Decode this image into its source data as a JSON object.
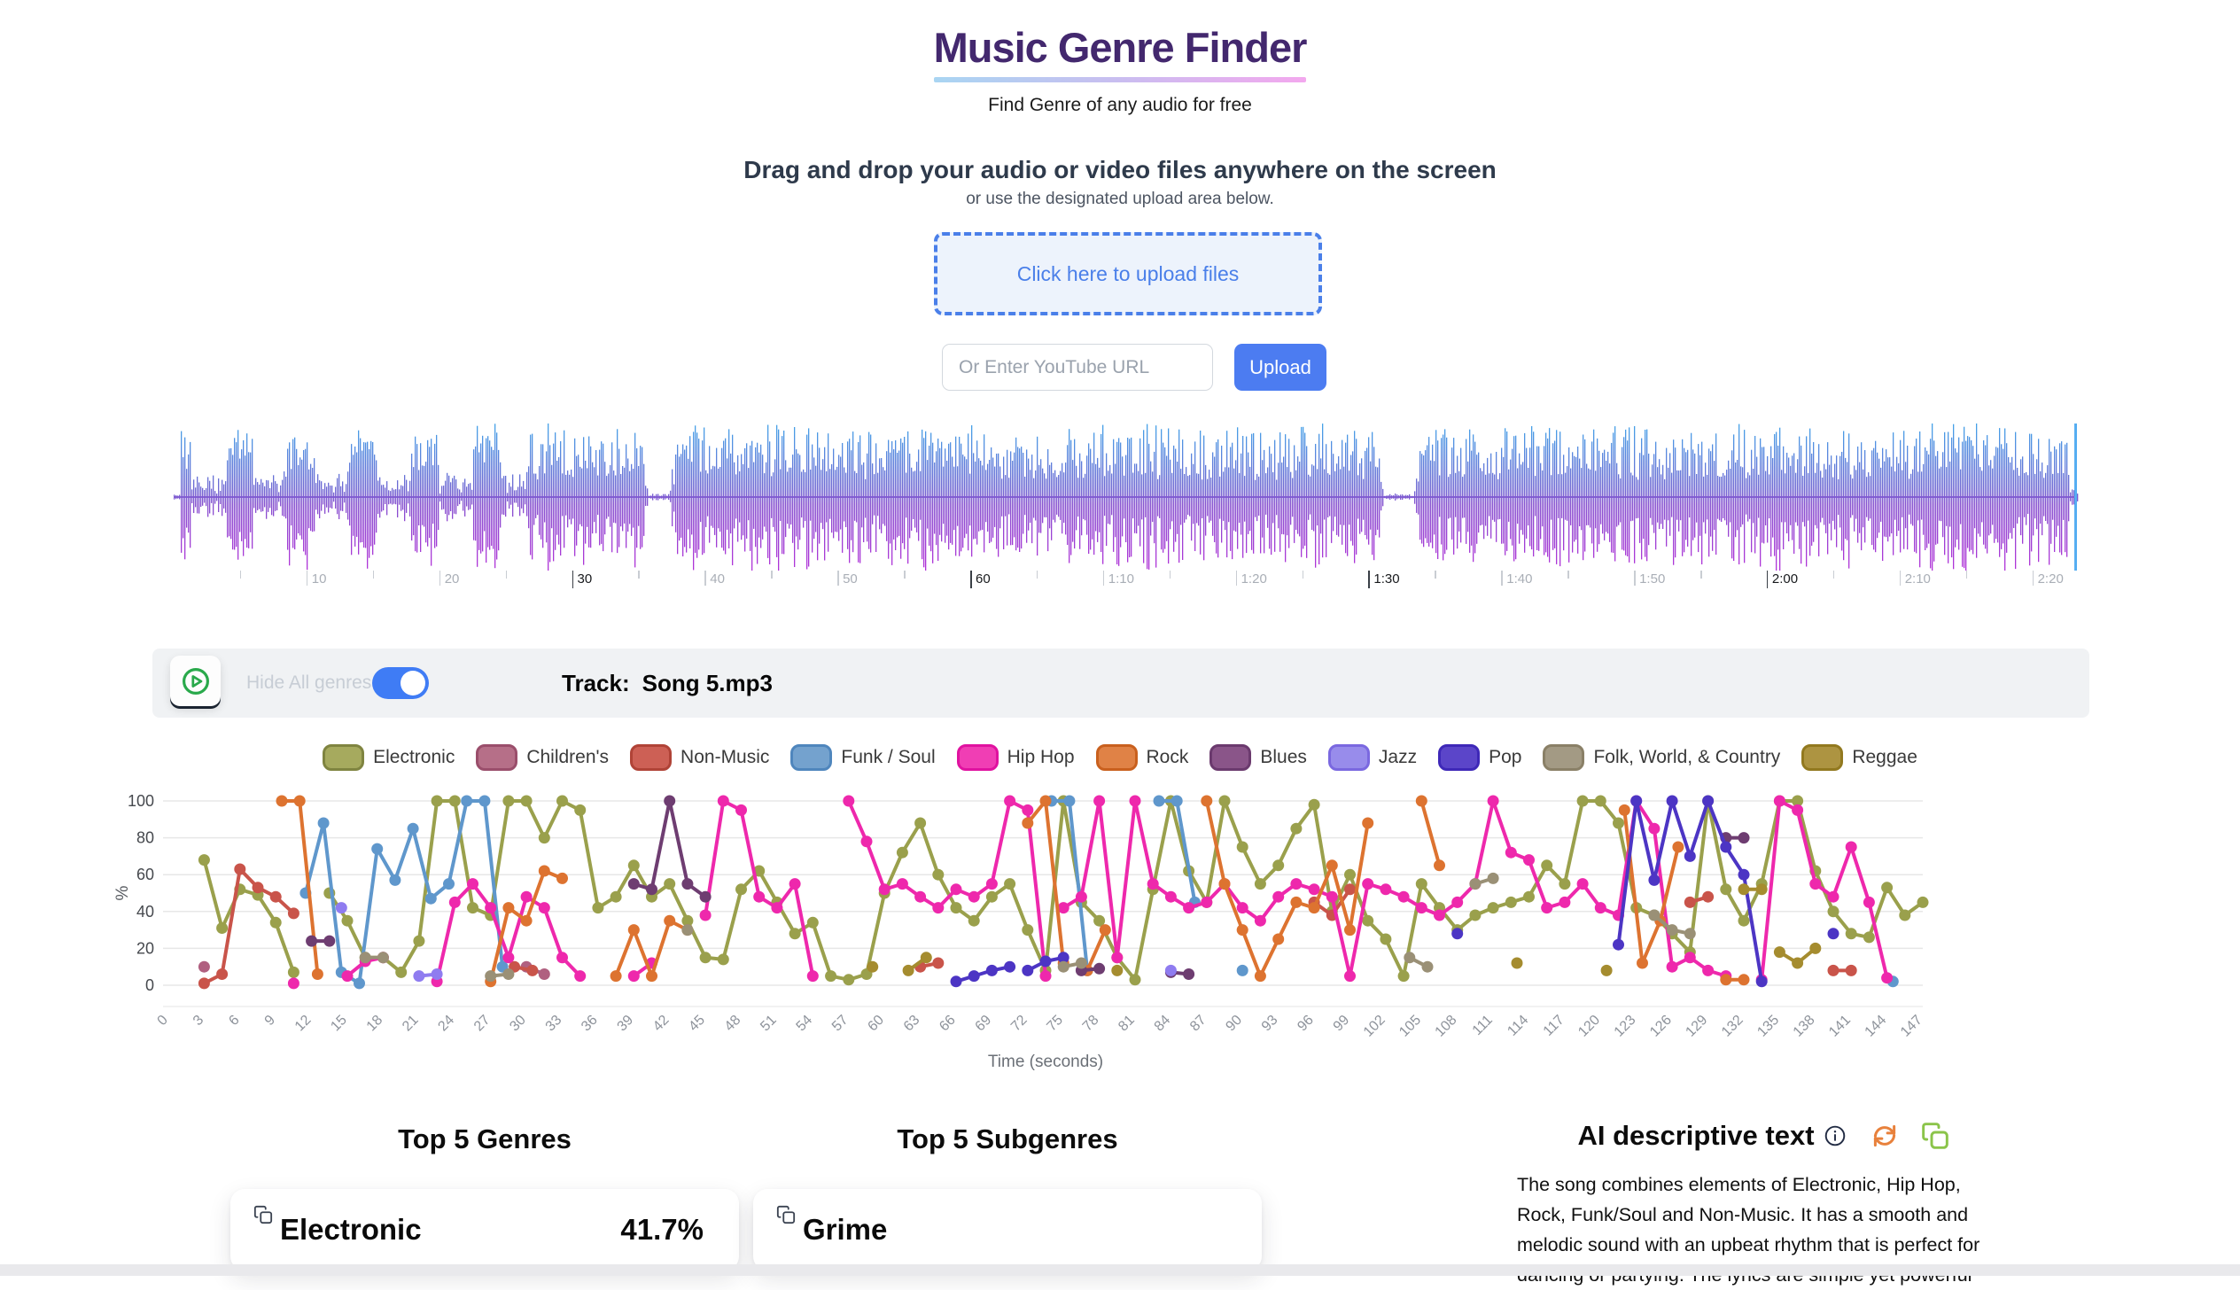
{
  "header": {
    "title": "Music Genre Finder",
    "subtitle": "Find Genre of any audio for free",
    "underline_gradient": [
      "#a9d5f2",
      "#f3a8ee"
    ]
  },
  "upload": {
    "heading": "Drag and drop your audio or video files anywhere on the screen",
    "subheading": "or use the designated upload area below.",
    "box_label": "Click here to upload files",
    "url_placeholder": "Or Enter YouTube URL",
    "button_label": "Upload",
    "accent_color": "#4a7fe9"
  },
  "waveform": {
    "duration_seconds": 143.5,
    "gradient": [
      "#44a3e8",
      "#6f66d2",
      "#8550cf",
      "#b232d8"
    ],
    "cursor_color": "#56aef2",
    "silence_gaps_seconds": [
      [
        35.7,
        37.3
      ],
      [
        91.1,
        93.4
      ]
    ],
    "ticks": [
      {
        "t": 10,
        "label": "10"
      },
      {
        "t": 20,
        "label": "20"
      },
      {
        "t": 30,
        "label": "30",
        "strong": true
      },
      {
        "t": 40,
        "label": "40"
      },
      {
        "t": 50,
        "label": "50"
      },
      {
        "t": 60,
        "label": "60",
        "strong": true
      },
      {
        "t": 70,
        "label": "1:10"
      },
      {
        "t": 80,
        "label": "1:20"
      },
      {
        "t": 90,
        "label": "1:30",
        "strong": true
      },
      {
        "t": 100,
        "label": "1:40"
      },
      {
        "t": 110,
        "label": "1:50"
      },
      {
        "t": 120,
        "label": "2:00",
        "strong": true
      },
      {
        "t": 130,
        "label": "2:10"
      },
      {
        "t": 140,
        "label": "2:20"
      }
    ]
  },
  "toolbar": {
    "hide_label": "Hide All genres",
    "toggle_on": true,
    "toggle_color": "#3f7cf5",
    "track_label": "Track:",
    "track_name": "Song 5.mp3",
    "play_icon_color": "#29a94b"
  },
  "legend": {
    "items": [
      {
        "label": "Electronic",
        "fill": "#a6aa5e",
        "border": "#7f8440"
      },
      {
        "label": "Children's",
        "fill": "#b66f88",
        "border": "#9a4e6b"
      },
      {
        "label": "Non-Music",
        "fill": "#cd6055",
        "border": "#b04337"
      },
      {
        "label": "Funk / Soul",
        "fill": "#74a2ce",
        "border": "#4f86bd"
      },
      {
        "label": "Hip Hop",
        "fill": "#f03eb4",
        "border": "#e012a0"
      },
      {
        "label": "Rock",
        "fill": "#e08246",
        "border": "#c9601e"
      },
      {
        "label": "Blues",
        "fill": "#8a5589",
        "border": "#6b3a6e"
      },
      {
        "label": "Jazz",
        "fill": "#988ceb",
        "border": "#7a68e0"
      },
      {
        "label": "Pop",
        "fill": "#5b45c9",
        "border": "#3e28b8"
      },
      {
        "label": "Folk, World, & Country",
        "fill": "#a39a84",
        "border": "#8a8067"
      },
      {
        "label": "Reggae",
        "fill": "#ad9441",
        "border": "#92791f"
      }
    ]
  },
  "chart_data": {
    "type": "line",
    "xlabel": "Time (seconds)",
    "ylabel": "%",
    "ylim": [
      0,
      100
    ],
    "y_ticks": [
      0,
      20,
      40,
      60,
      80,
      100
    ],
    "x_ticks": [
      0,
      3,
      6,
      9,
      12,
      15,
      18,
      21,
      24,
      27,
      30,
      33,
      36,
      39,
      42,
      45,
      48,
      51,
      54,
      57,
      60,
      63,
      66,
      69,
      72,
      75,
      78,
      81,
      84,
      87,
      90,
      93,
      96,
      99,
      102,
      105,
      108,
      111,
      114,
      117,
      120,
      123,
      126,
      129,
      132,
      135,
      138,
      141,
      144,
      147
    ],
    "grid": true,
    "legend_position": "top",
    "series": [
      {
        "name": "Electronic",
        "color": "#9aa04c",
        "segments": [
          {
            "t0": 3,
            "dt": 1.5,
            "v": [
              68,
              31,
              52,
              49,
              34,
              7
            ]
          },
          {
            "t0": 13.5,
            "dt": 1.5,
            "v": [
              50,
              35,
              15,
              15,
              7,
              24,
              100,
              100,
              42,
              38,
              100,
              100,
              80,
              100,
              95,
              42,
              48,
              65,
              48,
              55,
              35,
              15,
              14,
              52,
              62,
              45,
              28,
              34,
              5,
              3,
              6,
              50,
              72,
              88,
              60,
              42,
              35,
              48,
              55,
              30,
              8,
              100,
              45,
              35,
              15,
              3,
              52,
              100,
              62,
              45,
              100,
              75,
              55,
              65,
              85,
              98,
              40,
              60,
              35,
              25,
              5,
              55,
              42,
              30,
              38,
              42,
              45,
              48,
              65,
              55,
              100,
              100,
              88,
              42,
              38,
              28,
              18,
              100,
              52,
              35,
              55,
              100,
              100,
              62,
              40,
              28,
              26,
              53,
              38,
              45
            ]
          }
        ]
      },
      {
        "name": "Children's",
        "color": "#b06080",
        "segments": [
          [
            [
              3,
              10
            ]
          ],
          [
            [
              30,
              10
            ],
            [
              31.5,
              6
            ]
          ]
        ]
      },
      {
        "name": "Non-Music",
        "color": "#c9544a",
        "segments": [
          {
            "t0": 3,
            "dt": 1.5,
            "v": [
              1,
              6,
              63,
              53,
              48,
              39
            ]
          },
          [
            [
              29,
              10
            ],
            [
              30.5,
              8
            ]
          ],
          [
            [
              63,
              10
            ],
            [
              64.5,
              12
            ]
          ],
          [
            [
              96,
              45
            ],
            [
              97.5,
              38
            ],
            [
              99,
              52
            ]
          ],
          [
            [
              127.5,
              45
            ],
            [
              129,
              48
            ]
          ],
          [
            [
              139.5,
              8
            ],
            [
              141,
              8
            ]
          ]
        ]
      },
      {
        "name": "Funk / Soul",
        "color": "#5f97cc",
        "segments": [
          {
            "t0": 11.5,
            "dt": 1.5,
            "v": [
              50,
              88,
              7,
              1,
              74,
              57,
              85,
              47,
              55,
              100,
              100,
              10
            ]
          },
          {
            "t0": 74,
            "dt": 1.5,
            "v": [
              100,
              100,
              8
            ]
          },
          {
            "t0": 83,
            "dt": 1.5,
            "v": [
              100,
              100,
              45
            ]
          },
          [
            [
              90,
              8
            ]
          ],
          [
            [
              144.5,
              2
            ]
          ]
        ]
      },
      {
        "name": "Hip Hop",
        "color": "#ee28ac",
        "segments": [
          [
            [
              10.5,
              1
            ]
          ],
          {
            "t0": 15,
            "dt": 1.5,
            "v": [
              5,
              13,
              15
            ]
          },
          {
            "t0": 22.5,
            "dt": 1.5,
            "v": [
              2,
              45,
              55,
              42,
              15,
              48,
              42,
              15,
              5
            ]
          },
          [
            [
              39,
              5
            ],
            [
              40.5,
              12
            ]
          ],
          {
            "t0": 45,
            "dt": 1.5,
            "v": [
              38,
              100,
              95,
              48,
              42,
              55,
              5
            ]
          },
          {
            "t0": 57,
            "dt": 1.5,
            "v": [
              100,
              78,
              52,
              55,
              48,
              42,
              52,
              48,
              55,
              100,
              95,
              5
            ]
          },
          {
            "t0": 75,
            "dt": 1.5,
            "v": [
              42,
              48,
              100,
              15,
              100,
              55,
              48,
              42,
              45,
              55,
              42,
              35,
              48,
              55,
              52,
              48,
              5,
              55,
              52,
              48,
              42,
              38,
              45,
              55,
              100,
              72,
              68,
              42,
              45,
              55,
              42,
              38,
              100,
              85,
              10,
              15,
              8,
              5
            ]
          },
          {
            "t0": 133.5,
            "dt": 1.5,
            "v": [
              3,
              100,
              95,
              55,
              48,
              75,
              45,
              4
            ]
          }
        ]
      },
      {
        "name": "Rock",
        "color": "#dd7330",
        "segments": [
          [
            [
              9.5,
              100
            ],
            [
              11,
              100
            ],
            [
              12.5,
              6
            ]
          ],
          {
            "t0": 27,
            "dt": 1.5,
            "v": [
              2,
              42,
              35,
              62,
              58
            ]
          },
          {
            "t0": 37.5,
            "dt": 1.5,
            "v": [
              5,
              30,
              5,
              35,
              30
            ]
          },
          [
            [
              72,
              88
            ],
            [
              73.5,
              100
            ],
            [
              75,
              12
            ]
          ],
          [
            [
              77,
              8
            ],
            [
              78.5,
              30
            ]
          ],
          {
            "t0": 87,
            "dt": 1.5,
            "v": [
              100,
              55,
              30,
              5,
              25,
              45,
              42,
              65,
              30,
              88
            ]
          },
          [
            [
              105,
              100
            ],
            [
              106.5,
              65
            ]
          ],
          [
            [
              122,
              95
            ],
            [
              123.5,
              12
            ],
            [
              125,
              35
            ],
            [
              126.5,
              75
            ]
          ],
          [
            [
              130.5,
              3
            ],
            [
              132,
              3
            ]
          ]
        ]
      },
      {
        "name": "Blues",
        "color": "#6e3d71",
        "segments": [
          [
            [
              12,
              24
            ],
            [
              13.5,
              24
            ]
          ],
          [
            [
              39,
              55
            ],
            [
              40.5,
              52
            ],
            [
              42,
              100
            ],
            [
              43.5,
              55
            ],
            [
              45,
              48
            ]
          ],
          [
            [
              76.5,
              8
            ],
            [
              78,
              9
            ]
          ],
          [
            [
              84,
              7
            ],
            [
              85.5,
              6
            ]
          ],
          [
            [
              130.5,
              80
            ],
            [
              132,
              80
            ]
          ]
        ]
      },
      {
        "name": "Jazz",
        "color": "#8f7cf0",
        "segments": [
          [
            [
              14.5,
              42
            ]
          ],
          [
            [
              21,
              5
            ],
            [
              22.5,
              6
            ]
          ],
          [
            [
              84,
              8
            ]
          ]
        ]
      },
      {
        "name": "Pop",
        "color": "#4c35c4",
        "segments": [
          [
            [
              66,
              2
            ],
            [
              67.5,
              5
            ],
            [
              69,
              8
            ],
            [
              70.5,
              10
            ]
          ],
          [
            [
              72,
              8
            ],
            [
              73.5,
              13
            ],
            [
              75,
              15
            ]
          ],
          [
            [
              108,
              28
            ]
          ],
          [
            [
              121.5,
              22
            ],
            [
              123,
              100
            ],
            [
              124.5,
              57
            ],
            [
              126,
              100
            ],
            [
              127.5,
              70
            ],
            [
              129,
              100
            ],
            [
              130.5,
              75
            ],
            [
              132,
              60
            ],
            [
              133.5,
              2
            ]
          ],
          [
            [
              139.5,
              28
            ]
          ]
        ]
      },
      {
        "name": "Folk, World, & Country",
        "color": "#9a9076",
        "segments": [
          [
            [
              16.5,
              15
            ],
            [
              18,
              15
            ]
          ],
          [
            [
              27,
              5
            ],
            [
              28.5,
              6
            ]
          ],
          [
            [
              43.5,
              30
            ]
          ],
          [
            [
              75,
              10
            ],
            [
              76.5,
              12
            ]
          ],
          [
            [
              104,
              15
            ],
            [
              105.5,
              10
            ]
          ],
          [
            [
              109.5,
              55
            ],
            [
              111,
              58
            ]
          ],
          [
            [
              124.5,
              38
            ],
            [
              126,
              30
            ],
            [
              127.5,
              28
            ]
          ]
        ]
      },
      {
        "name": "Reggae",
        "color": "#a58c2f",
        "segments": [
          [
            [
              59,
              10
            ]
          ],
          [
            [
              62,
              8
            ],
            [
              63.5,
              15
            ]
          ],
          [
            [
              79.5,
              8
            ]
          ],
          [
            [
              113,
              12
            ]
          ],
          [
            [
              120.5,
              8
            ]
          ],
          [
            [
              132,
              52
            ],
            [
              133.5,
              52
            ]
          ],
          [
            [
              135,
              18
            ],
            [
              136.5,
              12
            ],
            [
              138,
              20
            ]
          ]
        ]
      }
    ]
  },
  "results": {
    "genres_heading": "Top 5 Genres",
    "genres": [
      {
        "name": "Electronic",
        "percent": "41.7%"
      }
    ],
    "subgenres_heading": "Top 5 Subgenres",
    "subgenres": [
      {
        "name": "Grime"
      }
    ],
    "ai_heading": "AI descriptive text",
    "ai_refresh_color": "#e8813c",
    "ai_copy_color": "#8bc44a",
    "ai_text": "The song combines elements of Electronic, Hip Hop, Rock, Funk/Soul and Non-Music. It has a smooth and melodic sound with an upbeat rhythm that is perfect for dancing or partying. The lyrics are simple yet powerful"
  }
}
